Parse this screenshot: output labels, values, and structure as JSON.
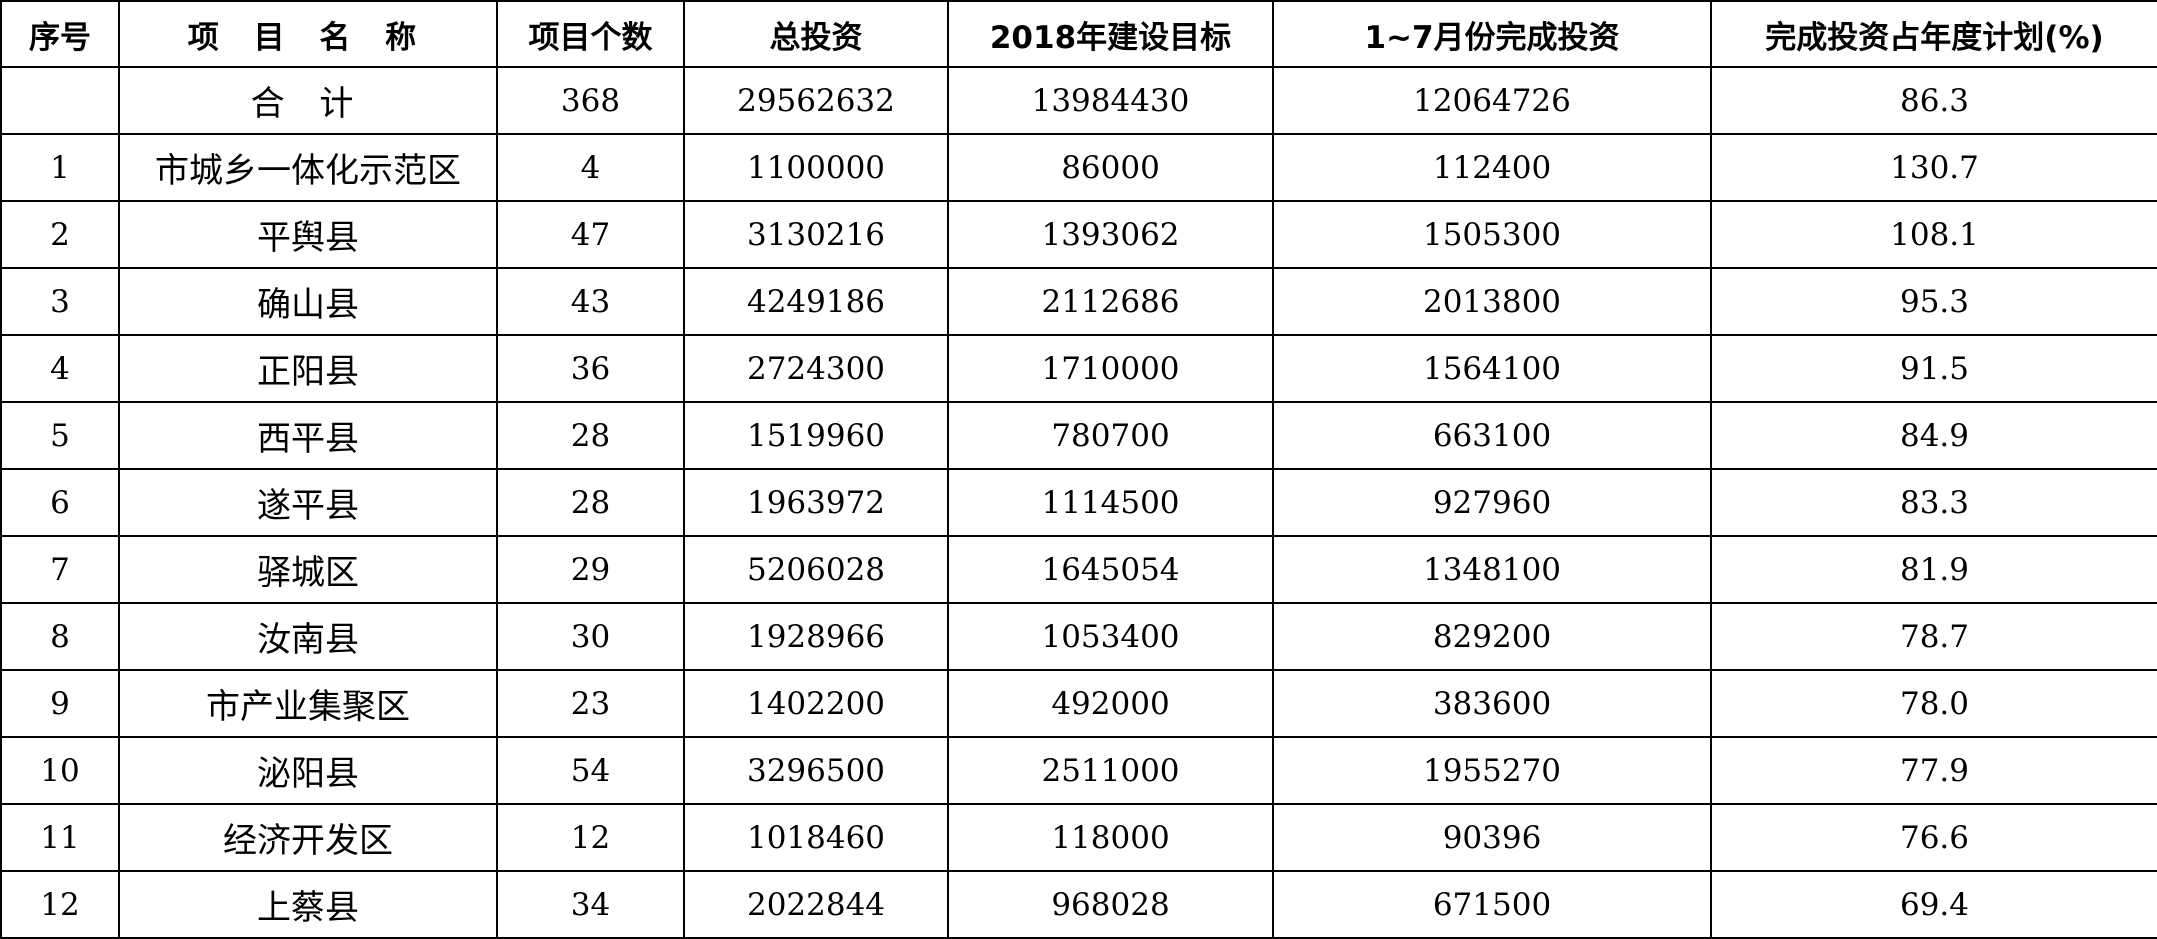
{
  "table": {
    "headers": [
      "序号",
      "项 目 名 称",
      "项目个数",
      "总投资",
      "2018年建设目标",
      "1~7月份完成投资",
      "完成投资占年度计划(%)"
    ],
    "total_row": {
      "no": "",
      "name": "合 计",
      "count": "368",
      "total": "29562632",
      "target": "13984430",
      "completed": "12064726",
      "percent": "86.3"
    },
    "rows": [
      {
        "no": "1",
        "name": "市城乡一体化示范区",
        "count": "4",
        "total": "1100000",
        "target": "86000",
        "completed": "112400",
        "percent": "130.7"
      },
      {
        "no": "2",
        "name": "平舆县",
        "count": "47",
        "total": "3130216",
        "target": "1393062",
        "completed": "1505300",
        "percent": "108.1"
      },
      {
        "no": "3",
        "name": "确山县",
        "count": "43",
        "total": "4249186",
        "target": "2112686",
        "completed": "2013800",
        "percent": "95.3"
      },
      {
        "no": "4",
        "name": "正阳县",
        "count": "36",
        "total": "2724300",
        "target": "1710000",
        "completed": "1564100",
        "percent": "91.5"
      },
      {
        "no": "5",
        "name": "西平县",
        "count": "28",
        "total": "1519960",
        "target": "780700",
        "completed": "663100",
        "percent": "84.9"
      },
      {
        "no": "6",
        "name": "遂平县",
        "count": "28",
        "total": "1963972",
        "target": "1114500",
        "completed": "927960",
        "percent": "83.3"
      },
      {
        "no": "7",
        "name": "驿城区",
        "count": "29",
        "total": "5206028",
        "target": "1645054",
        "completed": "1348100",
        "percent": "81.9"
      },
      {
        "no": "8",
        "name": "汝南县",
        "count": "30",
        "total": "1928966",
        "target": "1053400",
        "completed": "829200",
        "percent": "78.7"
      },
      {
        "no": "9",
        "name": "市产业集聚区",
        "count": "23",
        "total": "1402200",
        "target": "492000",
        "completed": "383600",
        "percent": "78.0"
      },
      {
        "no": "10",
        "name": "泌阳县",
        "count": "54",
        "total": "3296500",
        "target": "2511000",
        "completed": "1955270",
        "percent": "77.9"
      },
      {
        "no": "11",
        "name": "经济开发区",
        "count": "12",
        "total": "1018460",
        "target": "118000",
        "completed": "90396",
        "percent": "76.6"
      },
      {
        "no": "12",
        "name": "上蔡县",
        "count": "34",
        "total": "2022844",
        "target": "968028",
        "completed": "671500",
        "percent": "69.4"
      }
    ]
  }
}
